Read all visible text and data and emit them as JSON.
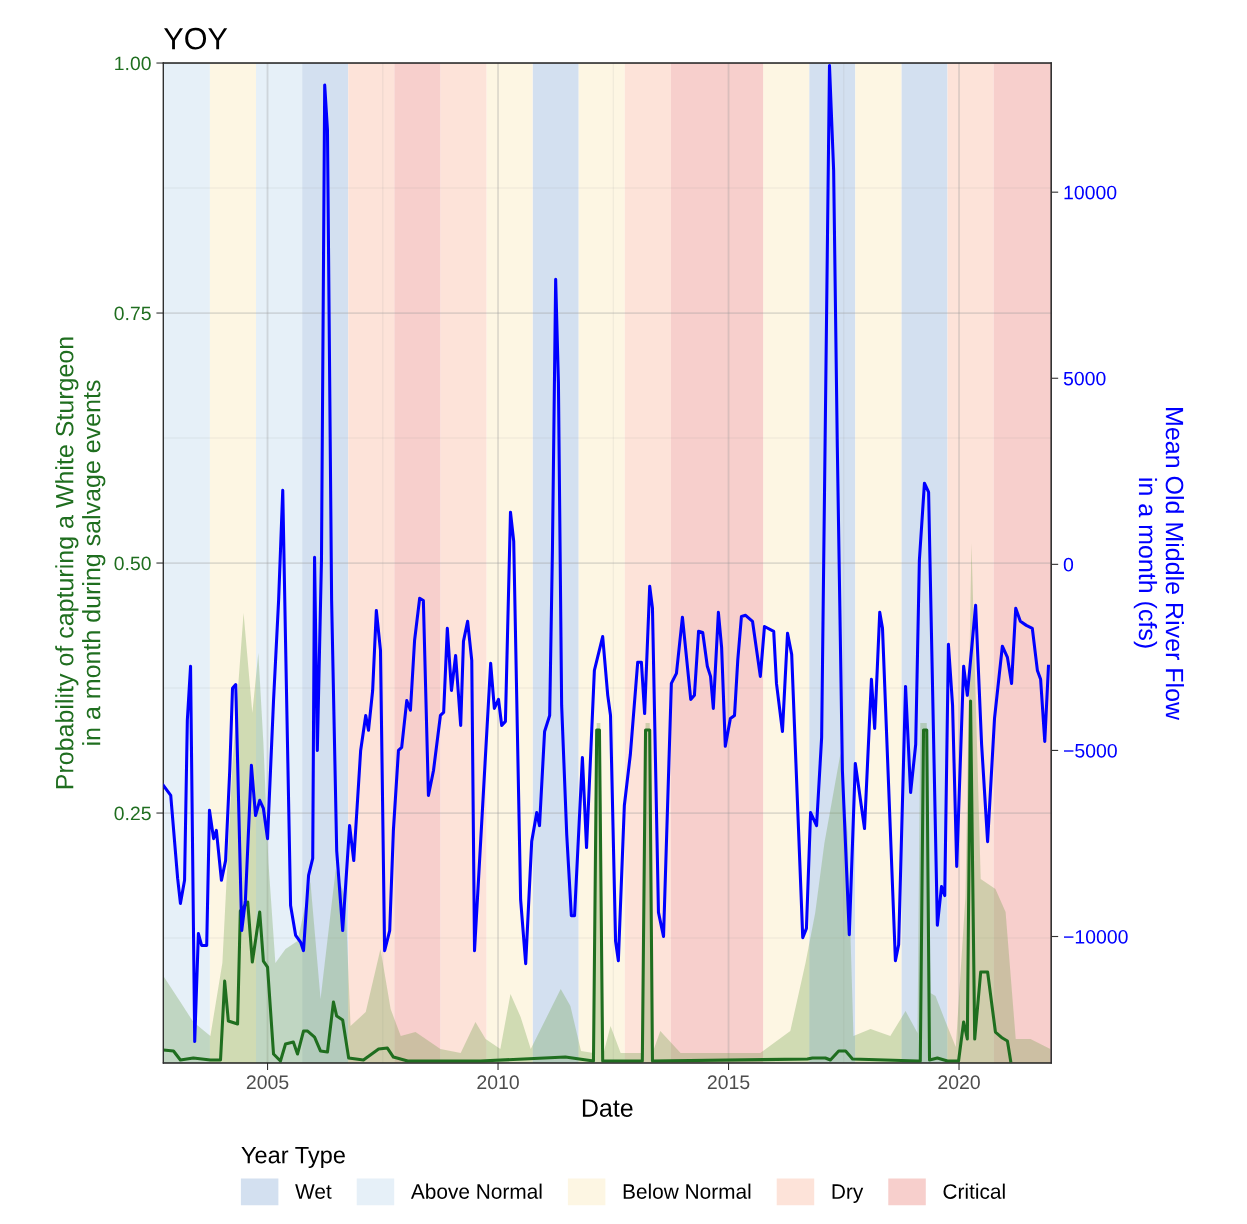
{
  "chart_data": {
    "type": "line",
    "title": "YOY",
    "xlabel": "Date",
    "ylabel": "Probability of capturing a White Sturgeon\nin a month during salvage events",
    "y2label": "Mean Old Middle River Flow\nin a month (cfs)",
    "legend_title": "Year Type",
    "legend": "bottom",
    "grid": true,
    "xlim": [
      2002.74,
      2022.0
    ],
    "xticks": [
      2005,
      2010,
      2015,
      2020
    ],
    "ylim": [
      0,
      1
    ],
    "yticks": [
      {
        "value": 0.25,
        "label": "0.25"
      },
      {
        "value": 0.5,
        "label": "0.50"
      },
      {
        "value": 0.75,
        "label": "0.75"
      },
      {
        "value": 1.0,
        "label": "1.00"
      }
    ],
    "y2lim": [
      -13400,
      13470
    ],
    "y2ticks": [
      {
        "value": -10000,
        "label": "−10000"
      },
      {
        "value": -5000,
        "label": "−5000"
      },
      0,
      5000,
      10000
    ],
    "bands": [
      {
        "axis": "x",
        "from": 2005.75,
        "to": 2006.75,
        "label": "Wet",
        "color": "#d3e0f0"
      },
      {
        "axis": "x",
        "from": 2010.75,
        "to": 2011.75,
        "color": "#d3e0f0"
      },
      {
        "axis": "x",
        "from": 2016.75,
        "to": 2017.75,
        "color": "#d3e0f0"
      },
      {
        "axis": "x",
        "from": 2018.75,
        "to": 2019.75,
        "color": "#d3e0f0"
      },
      {
        "axis": "x",
        "from": 2002.74,
        "to": 2003.75,
        "label": "Above Normal",
        "color": "#e6f0f8"
      },
      {
        "axis": "x",
        "from": 2004.75,
        "to": 2005.75,
        "color": "#e6f0f8"
      },
      {
        "axis": "x",
        "from": 2003.75,
        "to": 2004.75,
        "label": "Below Normal",
        "color": "#fdf6e3"
      },
      {
        "axis": "x",
        "from": 2009.75,
        "to": 2010.75,
        "color": "#fdf6e3"
      },
      {
        "axis": "x",
        "from": 2011.75,
        "to": 2012.75,
        "color": "#fdf6e3"
      },
      {
        "axis": "x",
        "from": 2015.75,
        "to": 2016.75,
        "color": "#fdf6e3"
      },
      {
        "axis": "x",
        "from": 2017.75,
        "to": 2018.75,
        "color": "#fdf6e3"
      },
      {
        "axis": "x",
        "from": 2006.75,
        "to": 2007.75,
        "label": "Dry",
        "color": "#fde3d9"
      },
      {
        "axis": "x",
        "from": 2008.75,
        "to": 2009.75,
        "color": "#fde3d9"
      },
      {
        "axis": "x",
        "from": 2012.75,
        "to": 2013.75,
        "color": "#fde3d9"
      },
      {
        "axis": "x",
        "from": 2019.75,
        "to": 2020.75,
        "color": "#fde3d9"
      },
      {
        "axis": "x",
        "from": 2007.75,
        "to": 2008.75,
        "label": "Critical",
        "color": "#f7cfcc"
      },
      {
        "axis": "x",
        "from": 2013.75,
        "to": 2015.75,
        "color": "#f7cfcc"
      },
      {
        "axis": "x",
        "from": 2020.75,
        "to": 2022.0,
        "color": "#f7cfcc"
      }
    ],
    "series": [
      {
        "type": "area",
        "axis": "y",
        "color": "#6a9a45",
        "x": [
          2002.74,
          2003.11,
          2003.39,
          2003.76,
          2004.02,
          2004.24,
          2004.48,
          2004.67,
          2004.8,
          2004.91,
          2005.02,
          2005.17,
          2005.39,
          2005.65,
          2005.93,
          2006.15,
          2006.48,
          2006.69,
          2006.8,
          2007.13,
          2007.45,
          2007.67,
          2007.89,
          2008.21,
          2008.75,
          2009.19,
          2009.51,
          2009.73,
          2010.05,
          2010.27,
          2010.49,
          2010.71,
          2011.36,
          2011.57,
          2011.8,
          2012.07,
          2012.14,
          2012.22,
          2012.29,
          2012.44,
          2012.66,
          2013.13,
          2013.2,
          2013.29,
          2013.35,
          2013.52,
          2013.96,
          2015.69,
          2016.34,
          2016.67,
          2016.88,
          2017.08,
          2017.43,
          2017.58,
          2017.71,
          2018.08,
          2018.51,
          2018.84,
          2019.1,
          2019.16,
          2019.3,
          2019.38,
          2019.49,
          2019.71,
          2019.93,
          2020.14,
          2020.27,
          2020.47,
          2020.79,
          2021.01,
          2021.23,
          2021.55,
          2021.98
        ],
        "values": [
          0.087,
          0.061,
          0.041,
          0.027,
          0.1,
          0.3,
          0.45,
          0.35,
          0.41,
          0.32,
          0.2,
          0.1,
          0.114,
          0.122,
          0.181,
          0.064,
          0.194,
          0.164,
          0.037,
          0.051,
          0.114,
          0.054,
          0.027,
          0.031,
          0.014,
          0.01,
          0.041,
          0.024,
          0.014,
          0.069,
          0.046,
          0.014,
          0.074,
          0.057,
          0.012,
          0.01,
          0.34,
          0.34,
          0.01,
          0.037,
          0.01,
          0.01,
          0.34,
          0.34,
          0.01,
          0.032,
          0.01,
          0.01,
          0.032,
          0.1,
          0.15,
          0.22,
          0.31,
          0.23,
          0.027,
          0.034,
          0.027,
          0.052,
          0.03,
          0.34,
          0.34,
          0.07,
          0.067,
          0.041,
          0.016,
          0.167,
          0.52,
          0.184,
          0.174,
          0.151,
          0.024,
          0.024,
          0.014
        ]
      },
      {
        "axis": "y",
        "color": "#1f6e1f",
        "x": [
          2002.74,
          2002.96,
          2003.11,
          2003.39,
          2003.76,
          2003.98,
          2004.07,
          2004.15,
          2004.35,
          2004.41,
          2004.57,
          2004.67,
          2004.83,
          2004.91,
          2005.0,
          2005.13,
          2005.28,
          2005.39,
          2005.56,
          2005.65,
          2005.78,
          2005.87,
          2006.02,
          2006.15,
          2006.3,
          2006.43,
          2006.5,
          2006.63,
          2006.76,
          2007.08,
          2007.41,
          2007.6,
          2007.73,
          2008.04,
          2009.62,
          2011.46,
          2012.07,
          2012.14,
          2012.2,
          2012.27,
          2013.13,
          2013.2,
          2013.29,
          2013.35,
          2016.71,
          2016.82,
          2017.1,
          2017.21,
          2017.39,
          2017.54,
          2017.69,
          2019.1,
          2019.16,
          2019.23,
          2019.3,
          2019.36,
          2019.53,
          2019.75,
          2019.99,
          2020.1,
          2020.18,
          2020.25,
          2020.34,
          2020.47,
          2020.62,
          2020.79,
          2020.94,
          2021.05,
          2021.12
        ],
        "values": [
          0.013,
          0.012,
          0.003,
          0.005,
          0.003,
          0.003,
          0.082,
          0.042,
          0.039,
          0.152,
          0.161,
          0.101,
          0.151,
          0.102,
          0.096,
          0.009,
          0.002,
          0.019,
          0.021,
          0.009,
          0.032,
          0.032,
          0.026,
          0.012,
          0.011,
          0.061,
          0.047,
          0.043,
          0.005,
          0.003,
          0.014,
          0.015,
          0.006,
          0.002,
          0.002,
          0.006,
          0.002,
          0.333,
          0.333,
          0.002,
          0.002,
          0.333,
          0.333,
          0.002,
          0.004,
          0.005,
          0.005,
          0.003,
          0.012,
          0.012,
          0.004,
          0.002,
          0.002,
          0.333,
          0.333,
          0.003,
          0.005,
          0.002,
          0.002,
          0.041,
          0.024,
          0.362,
          0.024,
          0.091,
          0.091,
          0.031,
          0.025,
          0.022,
          0.002
        ]
      },
      {
        "axis": "y2",
        "color": "#0000ff",
        "x": [
          2002.74,
          2002.9,
          2003.05,
          2003.11,
          2003.2,
          2003.26,
          2003.33,
          2003.42,
          2003.5,
          2003.57,
          2003.68,
          2003.74,
          2003.83,
          2003.89,
          2004.0,
          2004.09,
          2004.18,
          2004.24,
          2004.31,
          2004.44,
          2004.52,
          2004.65,
          2004.74,
          2004.83,
          2004.91,
          2005.0,
          2005.13,
          2005.24,
          2005.33,
          2005.39,
          2005.5,
          2005.61,
          2005.72,
          2005.78,
          2005.89,
          2005.98,
          2006.02,
          2006.08,
          2006.17,
          2006.24,
          2006.3,
          2006.39,
          2006.5,
          2006.63,
          2006.78,
          2006.87,
          2007.02,
          2007.13,
          2007.19,
          2007.28,
          2007.36,
          2007.45,
          2007.54,
          2007.65,
          2007.73,
          2007.84,
          2007.91,
          2008.02,
          2008.1,
          2008.19,
          2008.3,
          2008.38,
          2008.49,
          2008.6,
          2008.75,
          2008.82,
          2008.9,
          2008.99,
          2009.08,
          2009.19,
          2009.25,
          2009.34,
          2009.43,
          2009.49,
          2009.84,
          2009.92,
          2010.01,
          2010.08,
          2010.16,
          2010.27,
          2010.34,
          2010.49,
          2010.6,
          2010.73,
          2010.84,
          2010.9,
          2011.01,
          2011.12,
          2011.18,
          2011.25,
          2011.31,
          2011.38,
          2011.49,
          2011.59,
          2011.66,
          2011.83,
          2011.92,
          2012.09,
          2012.27,
          2012.38,
          2012.44,
          2012.55,
          2012.61,
          2012.74,
          2012.87,
          2013.03,
          2013.11,
          2013.18,
          2013.29,
          2013.35,
          2013.48,
          2013.59,
          2013.76,
          2013.87,
          2014.0,
          2014.18,
          2014.26,
          2014.35,
          2014.44,
          2014.54,
          2014.61,
          2014.67,
          2014.78,
          2014.85,
          2014.93,
          2015.04,
          2015.13,
          2015.2,
          2015.28,
          2015.37,
          2015.52,
          2015.69,
          2015.78,
          2015.98,
          2016.04,
          2016.17,
          2016.28,
          2016.37,
          2016.61,
          2016.69,
          2016.78,
          2016.91,
          2017.02,
          2017.19,
          2017.28,
          2017.36,
          2017.47,
          2017.62,
          2017.75,
          2017.95,
          2018.1,
          2018.17,
          2018.28,
          2018.34,
          2018.62,
          2018.69,
          2018.84,
          2018.95,
          2019.06,
          2019.14,
          2019.25,
          2019.34,
          2019.53,
          2019.62,
          2019.69,
          2019.77,
          2019.86,
          2019.95,
          2020.1,
          2020.18,
          2020.36,
          2020.49,
          2020.62,
          2020.77,
          2020.94,
          2021.05,
          2021.14,
          2021.23,
          2021.33,
          2021.46,
          2021.59,
          2021.7,
          2021.77,
          2021.86,
          2021.94
        ],
        "values": [
          -5940,
          -6210,
          -8440,
          -9110,
          -8490,
          -4190,
          -2740,
          -12820,
          -9920,
          -10240,
          -10240,
          -6610,
          -7370,
          -7150,
          -8490,
          -7960,
          -5540,
          -3330,
          -3230,
          -9840,
          -9030,
          -5400,
          -6750,
          -6340,
          -6560,
          -7370,
          -3660,
          -970,
          1990,
          -2040,
          -9170,
          -9970,
          -10160,
          -10380,
          -8360,
          -7900,
          190,
          -5000,
          110,
          12880,
          11670,
          -970,
          -7690,
          -9840,
          -7020,
          -7960,
          -5000,
          -4060,
          -4460,
          -3390,
          -1240,
          -2310,
          -10380,
          -9840,
          -7150,
          -5000,
          -4920,
          -3660,
          -3920,
          -2040,
          -910,
          -970,
          -6210,
          -5540,
          -4060,
          -3980,
          -1720,
          -3390,
          -2450,
          -4330,
          -2070,
          -1530,
          -2580,
          -10380,
          -2660,
          -3870,
          -3630,
          -4330,
          -4220,
          1400,
          620,
          -9010,
          -10730,
          -7450,
          -6670,
          -7020,
          -4490,
          -4060,
          380,
          7660,
          4870,
          -3790,
          -7260,
          -9440,
          -9440,
          -5190,
          -7610,
          -2850,
          -1940,
          -3520,
          -4060,
          -10130,
          -10650,
          -6480,
          -5110,
          -2630,
          -2630,
          -4010,
          -590,
          -1180,
          -9350,
          -10000,
          -3200,
          -2930,
          -1420,
          -3630,
          -3520,
          -1800,
          -1830,
          -2740,
          -3010,
          -3870,
          -1290,
          -2230,
          -4890,
          -4140,
          -4060,
          -2580,
          -1400,
          -1370,
          -1530,
          -3010,
          -1670,
          -1800,
          -3200,
          -4490,
          -1850,
          -2420,
          -10030,
          -9780,
          -6670,
          -7020,
          -4650,
          13400,
          10590,
          3150,
          -5540,
          -9950,
          -5350,
          -7100,
          -3090,
          -4410,
          -1290,
          -1720,
          -10650,
          -10220,
          -3280,
          -6130,
          -4840,
          110,
          2180,
          1940,
          -9700,
          -8660,
          -8900,
          -2150,
          -3790,
          -8120,
          -2740,
          -3520,
          -1100,
          -4840,
          -7450,
          -4140,
          -2200,
          -2500,
          -3200,
          -1180,
          -1530,
          -1640,
          -1720,
          -2850,
          -3090,
          -4760,
          -2740
        ]
      }
    ]
  }
}
